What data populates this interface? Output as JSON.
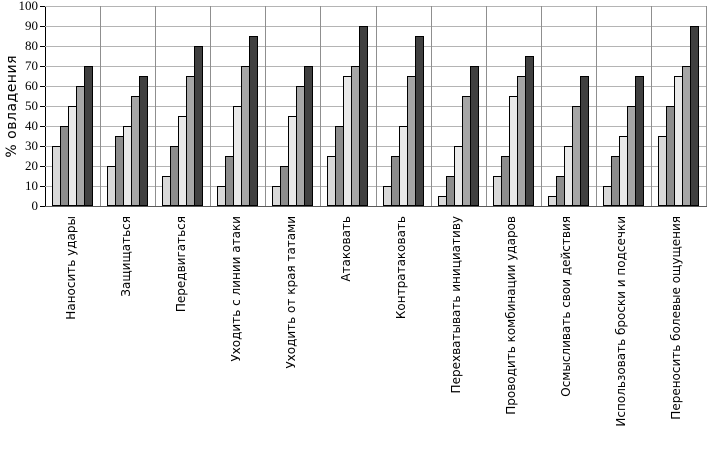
{
  "chart_data": {
    "type": "bar",
    "title": "",
    "ylabel": "% овладения",
    "xlabel": "",
    "ylim": [
      0,
      100
    ],
    "ytick_step": 10,
    "yticks": [
      0,
      10,
      20,
      30,
      40,
      50,
      60,
      70,
      80,
      90,
      100
    ],
    "grid": "both",
    "legend": "none",
    "categories": [
      "Наносить удары",
      "Защищаться",
      "Передвигаться",
      "Уходить с линии атаки",
      "Уходить от края татами",
      "Атаковать",
      "Контратаковать",
      "Перехватывать инициативу",
      "Проводить комбинации ударов",
      "Осмысливать свои действия",
      "Использовать броски и подсечки",
      "Переносить болевые ощущения"
    ],
    "series": [
      {
        "color": "#d9d9d9",
        "values": [
          30,
          20,
          15,
          10,
          10,
          25,
          10,
          5,
          15,
          5,
          10,
          35
        ]
      },
      {
        "color": "#8c8c8c",
        "values": [
          40,
          35,
          30,
          25,
          20,
          40,
          25,
          15,
          25,
          15,
          25,
          50
        ]
      },
      {
        "color": "#e9e9e9",
        "values": [
          50,
          40,
          45,
          50,
          45,
          65,
          40,
          30,
          55,
          30,
          35,
          65
        ]
      },
      {
        "color": "#a6a6a6",
        "values": [
          60,
          55,
          65,
          70,
          60,
          70,
          65,
          55,
          65,
          50,
          50,
          70
        ]
      },
      {
        "color": "#404040",
        "values": [
          70,
          65,
          80,
          85,
          70,
          90,
          85,
          70,
          75,
          65,
          65,
          90
        ]
      }
    ],
    "colors": {
      "h_gridline": "#b4b4b4",
      "v_gridline": "#8f8f8f",
      "y_axis": "#000000",
      "x_axis": "#595959",
      "bar_border": "#000000"
    }
  }
}
